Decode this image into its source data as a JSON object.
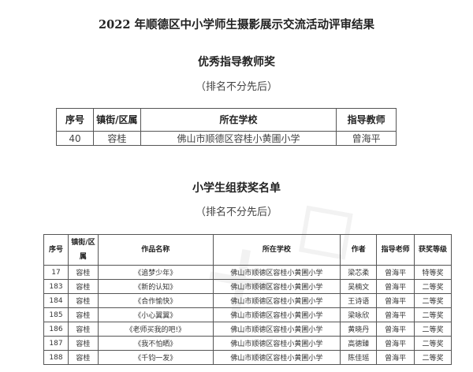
{
  "title": "2022 年顺德区中小学师生摄影展示交流活动评审结果",
  "section1": {
    "title": "优秀指导教师奖",
    "subtitle": "（排名不分先后）",
    "headers": [
      "序号",
      "镇街/区属",
      "所在学校",
      "指导教师"
    ],
    "rows": [
      [
        "40",
        "容桂",
        "佛山市顺德区容桂小黄圃小学",
        "曾海平"
      ]
    ]
  },
  "section2": {
    "title": "小学生组获奖名单",
    "subtitle": "（排名不分先后）",
    "headers": [
      "序号",
      "镇街/区属",
      "作品名称",
      "所在学校",
      "作者",
      "指导老师",
      "获奖等级"
    ],
    "rows": [
      [
        "17",
        "容桂",
        "《追梦少年》",
        "佛山市顺德区容桂小黄圃小学",
        "梁芯柔",
        "曾海平",
        "特等奖"
      ],
      [
        "183",
        "容桂",
        "《新的认知》",
        "佛山市顺德区容桂小黄圃小学",
        "吴楠文",
        "曾海平",
        "二等奖"
      ],
      [
        "184",
        "容桂",
        "《合作愉快》",
        "佛山市顺德区容桂小黄圃小学",
        "王诗语",
        "曾海平",
        "二等奖"
      ],
      [
        "185",
        "容桂",
        "《小心翼翼》",
        "佛山市顺德区容桂小黄圃小学",
        "梁咏欣",
        "曾海平",
        "二等奖"
      ],
      [
        "186",
        "容桂",
        "《老师买我的吧!》",
        "佛山市顺德区容桂小黄圃小学",
        "黄晓丹",
        "曾海平",
        "二等奖"
      ],
      [
        "187",
        "容桂",
        "《我不怕晒》",
        "佛山市顺德区容桂小黄圃小学",
        "高德臻",
        "曾海平",
        "二等奖"
      ],
      [
        "188",
        "容桂",
        "《千钧一发》",
        "佛山市顺德区容桂小黄圃小学",
        "陈佳瑶",
        "曾海平",
        "二等奖"
      ]
    ]
  }
}
